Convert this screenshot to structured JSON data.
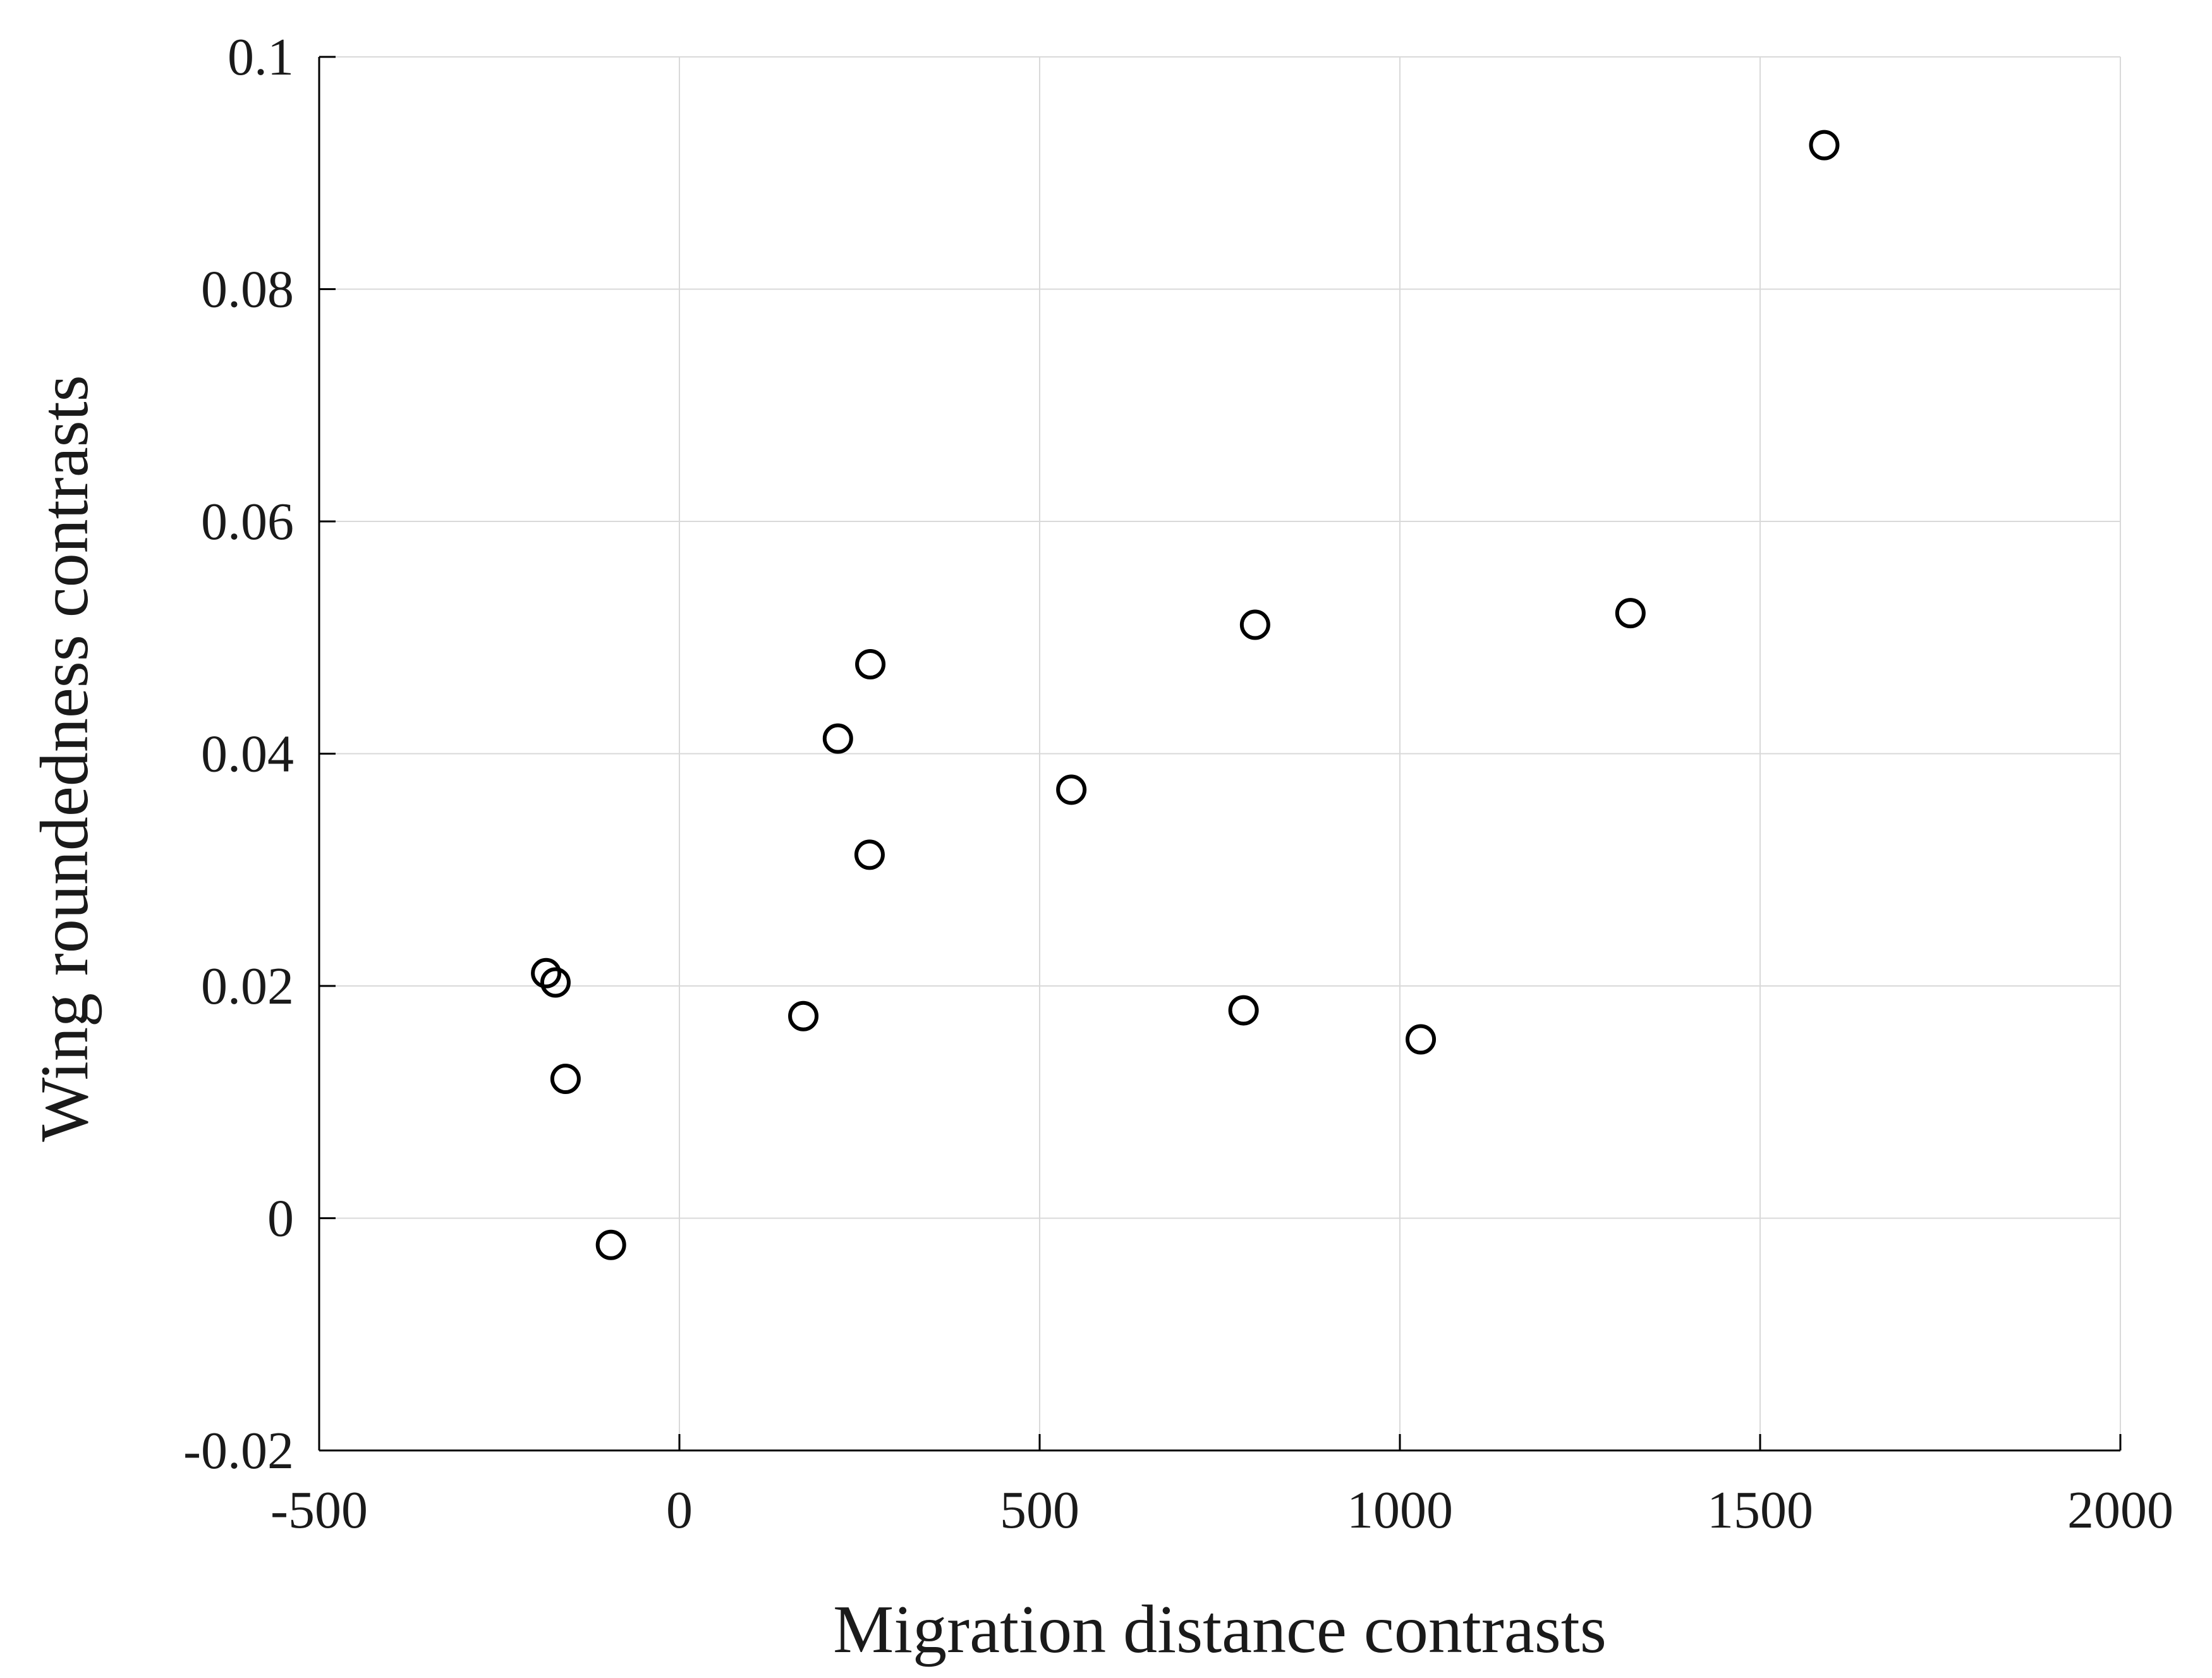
{
  "chart_data": {
    "type": "scatter",
    "title": "",
    "xlabel": "Migration distance contrasts",
    "ylabel": "Wing roundedness contrasts",
    "xlim": [
      -500,
      2000
    ],
    "ylim": [
      -0.02,
      0.1
    ],
    "xticks": [
      -500,
      0,
      500,
      1000,
      1500,
      2000
    ],
    "xtick_labels": [
      "-500",
      "0",
      "500",
      "1000",
      "1500",
      "2000"
    ],
    "yticks": [
      -0.02,
      0,
      0.02,
      0.04,
      0.06,
      0.08,
      0.1
    ],
    "ytick_labels": [
      "-0.02",
      "0",
      "0.02",
      "0.04",
      "0.06",
      "0.08",
      "0.1"
    ],
    "grid": true,
    "marker": "open-circle",
    "marker_color": "#000000",
    "grid_color": "#d9d9d9",
    "series": [
      {
        "points": [
          {
            "x": -185,
            "y": 0.0211
          },
          {
            "x": -172,
            "y": 0.0203
          },
          {
            "x": -158,
            "y": 0.012
          },
          {
            "x": -95,
            "y": -0.0023
          },
          {
            "x": 172,
            "y": 0.0174
          },
          {
            "x": 220,
            "y": 0.0413
          },
          {
            "x": 264,
            "y": 0.0313
          },
          {
            "x": 265,
            "y": 0.0477
          },
          {
            "x": 544,
            "y": 0.0369
          },
          {
            "x": 783,
            "y": 0.0179
          },
          {
            "x": 799,
            "y": 0.0511
          },
          {
            "x": 1029,
            "y": 0.0154
          },
          {
            "x": 1320,
            "y": 0.0521
          },
          {
            "x": 1589,
            "y": 0.0924
          }
        ]
      }
    ]
  }
}
